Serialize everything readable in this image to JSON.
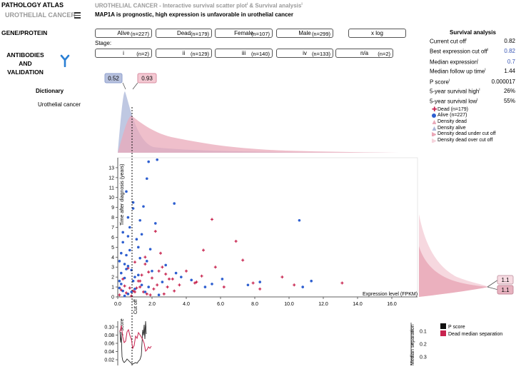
{
  "sidebar": {
    "brand": "PATHOLOGY ATLAS",
    "section": "UROTHELIAL CANCER",
    "gene_protein": "GENE/PROTEIN",
    "antibodies_1": "ANTIBODIES",
    "antibodies_2": "AND",
    "antibodies_3": "VALIDATION",
    "dictionary": "Dictionary",
    "dictionary_item": "Urothelial cancer"
  },
  "header": {
    "title": "UROTHELIAL CANCER - Interactive survival scatter plot",
    "title_sup1": "i",
    "title_and": " & Survival analysis",
    "title_sup2": "i",
    "subtitle": "MAP1A is prognostic, high expression is unfavorable in urothelial cancer"
  },
  "filters": [
    {
      "label": "Alive",
      "count": "(n=227)"
    },
    {
      "label": "Dead",
      "count": "(n=179)"
    },
    {
      "label": "Female",
      "count": "(n=107)"
    },
    {
      "label": "Male",
      "count": "(n=299)"
    },
    {
      "label": "x log",
      "count": ""
    }
  ],
  "stage_label": "Stage:",
  "stages": [
    {
      "label": "i",
      "count": "(n=2)"
    },
    {
      "label": "ii",
      "count": "(n=129)"
    },
    {
      "label": "iii",
      "count": "(n=140)"
    },
    {
      "label": "iv",
      "count": "(n=133)"
    },
    {
      "label": "n/a",
      "count": "(n=2)"
    }
  ],
  "survival": {
    "title": "Survival analysis",
    "rows": [
      {
        "key": "Current cut off",
        "sup": "i",
        "value": "0.82",
        "blue": false
      },
      {
        "key": "Best expression cut off",
        "sup": "i",
        "value": "0.82",
        "blue": true
      },
      {
        "key": "Median expression",
        "sup": "i",
        "value": "0.7",
        "blue": true
      },
      {
        "key": "Median follow up time",
        "sup": "i",
        "value": "1.44",
        "blue": false
      },
      {
        "key": "P score",
        "sup": "i",
        "value": "0.000017",
        "blue": false
      },
      {
        "key": "5-year survival high",
        "sup": "i",
        "value": "26%",
        "blue": false
      },
      {
        "key": "5-year survival low",
        "sup": "i",
        "value": "55%",
        "blue": false
      }
    ]
  },
  "legend": [
    {
      "label": "Dead (n=179)",
      "color": "#c8244f",
      "shape": "plus"
    },
    {
      "label": "Alive (n=227)",
      "color": "#2e5fd0",
      "shape": "circle"
    },
    {
      "label": "Density dead",
      "color": "#e9a9b9",
      "shape": "triangle"
    },
    {
      "label": "Density alive",
      "color": "#a9b5d8",
      "shape": "triangle"
    },
    {
      "label": "Density dead under cut off",
      "color": "#eba7b7",
      "shape": "triangle-right"
    },
    {
      "label": "Density dead over cut off",
      "color": "#f5d4dc",
      "shape": "triangle-right"
    }
  ],
  "chart_data": [
    {
      "type": "scatter",
      "xlabel": "Expression level (FPKM)",
      "ylabel": "Time after diagnosis (years)",
      "xlim": [
        0,
        17.5
      ],
      "ylim": [
        0,
        14
      ],
      "x_ticks": [
        "0.0",
        "2.0",
        "4.0",
        "6.0",
        "8.0",
        "10.0",
        "12.0",
        "14.0",
        "16.0"
      ],
      "y_ticks": [
        "0",
        "1",
        "2",
        "3",
        "4",
        "5",
        "6",
        "7",
        "8",
        "9",
        "10",
        "11",
        "12",
        "13"
      ],
      "cutoff": 0.82,
      "cutoff_label": "Cut off",
      "top_badges": [
        "0.52",
        "0.93"
      ],
      "right_badges": [
        "1.1",
        "1.1"
      ],
      "series": [
        {
          "name": "Dead (n=179)",
          "color": "#c8244f",
          "points": [
            [
              5.5,
              7.8
            ],
            [
              6.9,
              5.6
            ],
            [
              13.1,
              1.4
            ],
            [
              9.6,
              2.0
            ],
            [
              7.9,
              1.4
            ],
            [
              5.0,
              4.7
            ],
            [
              5.7,
              3.0
            ],
            [
              2.2,
              6.6
            ],
            [
              2.6,
              3.0
            ],
            [
              2.5,
              4.4
            ],
            [
              3.0,
              1.8
            ],
            [
              4.6,
              1.5
            ],
            [
              7.3,
              3.7
            ],
            [
              1.8,
              2.5
            ],
            [
              2.0,
              1.9
            ],
            [
              1.3,
              1.0
            ],
            [
              1.6,
              3.3
            ],
            [
              2.8,
              2.3
            ],
            [
              1.1,
              0.9
            ],
            [
              2.3,
              1.2
            ],
            [
              1.5,
              0.5
            ],
            [
              3.3,
              0.6
            ],
            [
              0.9,
              0.6
            ],
            [
              1.2,
              1.6
            ],
            [
              1.7,
              0.3
            ],
            [
              4.0,
              2.6
            ],
            [
              4.5,
              1.4
            ],
            [
              2.1,
              0.8
            ],
            [
              3.6,
              1.2
            ],
            [
              1.4,
              2.2
            ],
            [
              0.4,
              1.1
            ],
            [
              0.2,
              0.7
            ],
            [
              0.5,
              0.4
            ],
            [
              0.3,
              1.8
            ],
            [
              1.0,
              3.5
            ],
            [
              2.7,
              0.3
            ],
            [
              6.2,
              1.0
            ],
            [
              8.3,
              0.8
            ],
            [
              1.9,
              0.2
            ],
            [
              0.6,
              2.9
            ],
            [
              1.3,
              1.6
            ],
            [
              2.4,
              2.6
            ],
            [
              10.3,
              1.2
            ],
            [
              0.8,
              0.1
            ],
            [
              0.1,
              0.2
            ],
            [
              3.2,
              1.8
            ],
            [
              4.9,
              2.1
            ],
            [
              1.0,
              0.5
            ],
            [
              0.7,
              0.9
            ],
            [
              2.9,
              1.0
            ],
            [
              1.6,
              4.0
            ]
          ]
        },
        {
          "name": "Alive (n=227)",
          "color": "#2e5fd0",
          "points": [
            [
              1.8,
              13.6
            ],
            [
              2.3,
              13.8
            ],
            [
              1.7,
              11.9
            ],
            [
              0.5,
              10.6
            ],
            [
              1.5,
              9.1
            ],
            [
              0.9,
              8.9
            ],
            [
              1.3,
              7.7
            ],
            [
              2.2,
              7.4
            ],
            [
              3.3,
              9.4
            ],
            [
              0.7,
              7.0
            ],
            [
              10.6,
              7.7
            ],
            [
              1.4,
              6.3
            ],
            [
              0.3,
              6.5
            ],
            [
              1.2,
              5.0
            ],
            [
              0.2,
              4.4
            ],
            [
              0.5,
              4.2
            ],
            [
              1.7,
              3.6
            ],
            [
              1.9,
              4.8
            ],
            [
              0.1,
              3.6
            ],
            [
              0.6,
              3.1
            ],
            [
              0.8,
              2.7
            ],
            [
              1.2,
              2.2
            ],
            [
              2.0,
              2.6
            ],
            [
              3.4,
              2.4
            ],
            [
              3.7,
              2.0
            ],
            [
              4.3,
              1.7
            ],
            [
              6.1,
              1.8
            ],
            [
              5.1,
              1.0
            ],
            [
              5.5,
              1.3
            ],
            [
              8.3,
              1.5
            ],
            [
              11.3,
              1.6
            ],
            [
              10.8,
              1.0
            ],
            [
              7.6,
              1.2
            ],
            [
              0.4,
              1.9
            ],
            [
              0.2,
              1.3
            ],
            [
              0.9,
              1.6
            ],
            [
              1.4,
              1.2
            ],
            [
              2.6,
              1.5
            ],
            [
              0.3,
              0.6
            ],
            [
              0.6,
              0.3
            ],
            [
              1.0,
              0.8
            ],
            [
              0.1,
              0.9
            ],
            [
              0.4,
              0.1
            ],
            [
              1.6,
              0.5
            ],
            [
              2.4,
              0.2
            ],
            [
              0.7,
              4.7
            ],
            [
              0.3,
              5.5
            ],
            [
              1.1,
              5.8
            ],
            [
              0.6,
              8.0
            ],
            [
              0.9,
              9.5
            ],
            [
              0.2,
              2.4
            ],
            [
              0.5,
              2.8
            ],
            [
              1.3,
              3.9
            ],
            [
              2.8,
              3.2
            ],
            [
              0.8,
              0.5
            ],
            [
              0.1,
              1.6
            ],
            [
              1.8,
              1.0
            ],
            [
              0.4,
              3.3
            ],
            [
              0.6,
              6.1
            ],
            [
              1.0,
              2.0
            ]
          ]
        }
      ]
    },
    {
      "type": "line",
      "ylabel": "P score",
      "y_ticks": [
        "0.10",
        "0.08",
        "0.06",
        "0.04",
        "0.02"
      ],
      "right_label": "Median separation",
      "right_ticks": [
        "0.1",
        "0.2",
        "0.3"
      ],
      "series": [
        {
          "name": "P score",
          "color": "#111111"
        },
        {
          "name": "Dead median separation",
          "color": "#c8244f"
        }
      ]
    }
  ]
}
